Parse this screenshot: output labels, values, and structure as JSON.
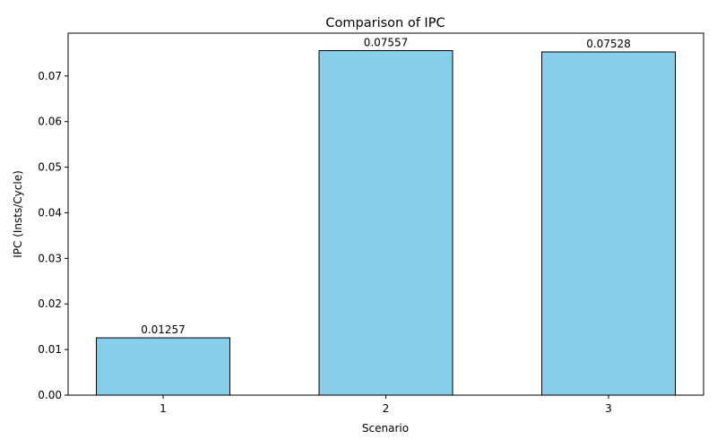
{
  "chart_data": {
    "type": "bar",
    "title": "Comparison of IPC",
    "xlabel": "Scenario",
    "ylabel": "IPC (Insts/Cycle)",
    "categories": [
      "1",
      "2",
      "3"
    ],
    "values": [
      0.01257,
      0.07557,
      0.07528
    ],
    "value_labels": [
      "0.01257",
      "0.07557",
      "0.07528"
    ],
    "ylim": [
      0,
      0.0794
    ],
    "yticks": [
      0.0,
      0.01,
      0.02,
      0.03,
      0.04,
      0.05,
      0.06,
      0.07
    ],
    "ytick_labels": [
      "0.00",
      "0.01",
      "0.02",
      "0.03",
      "0.04",
      "0.05",
      "0.06",
      "0.07"
    ],
    "grid": false,
    "legend": "none",
    "colors": {
      "bar_fill": "#87CEEB",
      "bar_edge": "#000000",
      "axis": "#000000",
      "text": "#000000"
    }
  }
}
